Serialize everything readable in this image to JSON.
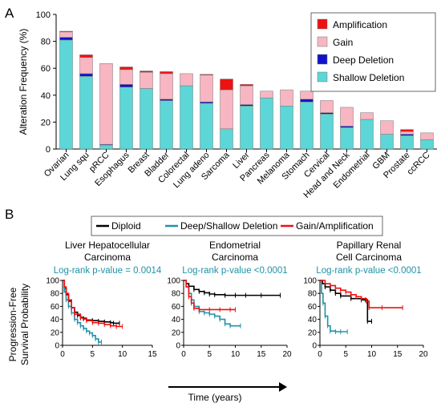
{
  "panel_a": {
    "label": "A",
    "chart_data": {
      "type": "bar",
      "stacked": true,
      "ylabel": "Alteration Frequency (%)",
      "ylim": [
        0,
        100
      ],
      "yticks": [
        "0",
        "20",
        "40",
        "60",
        "80",
        "100"
      ],
      "legend": {
        "placement": "top-right"
      },
      "categories": [
        "Ovarian",
        "Lung squ",
        "pRCC",
        "Esophagus",
        "Breast",
        "Bladder",
        "Colorectal",
        "Lung adeno",
        "Sarcoma",
        "Liver",
        "Pancreas",
        "Melanoma",
        "Stomach",
        "Cervical",
        "Head and Neck",
        "Endometrial",
        "GBM",
        "Prostate",
        "ccRCC"
      ],
      "series": [
        {
          "name": "Shallow Deletion",
          "color": "#5cd6d6",
          "values": [
            81,
            54,
            3,
            46,
            45,
            36,
            47,
            34,
            15,
            32,
            38,
            32,
            35,
            26,
            16,
            22,
            11,
            10,
            7
          ]
        },
        {
          "name": "Deep Deletion",
          "color": "#1111cc",
          "values": [
            2,
            2,
            0.5,
            2,
            0,
            1,
            0,
            1,
            0,
            1,
            0,
            0,
            2,
            1,
            1,
            0,
            0,
            1,
            0
          ]
        },
        {
          "name": "Gain",
          "color": "#f7b6c2",
          "values": [
            4,
            12,
            60,
            11,
            12,
            19,
            9,
            20,
            29,
            14,
            5,
            12,
            6,
            9,
            14,
            5,
            10,
            2,
            5
          ]
        },
        {
          "name": "Amplification",
          "color": "#ee1111",
          "values": [
            0.5,
            2,
            0,
            2,
            1,
            1.5,
            0,
            0.5,
            8,
            1,
            0,
            0,
            0,
            0,
            0,
            0,
            0,
            1.5,
            0
          ]
        }
      ]
    }
  },
  "panel_b": {
    "label": "B",
    "legend": [
      {
        "name": "Diploid",
        "color": "#000000"
      },
      {
        "name": "Deep/Shallow Deletion",
        "color": "#1e93a8"
      },
      {
        "name": "Gain/Amplification",
        "color": "#ee1111"
      }
    ],
    "ylabel_line1": "Progression-Free",
    "ylabel_line2": "Survival Probability",
    "xlabel": "Time (years)",
    "pvalue_color": "#1e93a8",
    "chart_data": [
      {
        "type": "line",
        "title_line1": "Liver Hepatocellular",
        "title_line2": "Carcinoma",
        "pvalue": "Log-rank p-value = 0.0014",
        "xlim": [
          0,
          15
        ],
        "ylim": [
          0,
          100
        ],
        "xticks": [
          "0",
          "5",
          "10",
          "15"
        ],
        "yticks": [
          "0",
          "20",
          "40",
          "60",
          "80",
          "100"
        ],
        "series": [
          {
            "name": "Diploid",
            "x": [
              0,
              0.3,
              0.6,
              1,
              1.5,
              2,
              2.5,
              3,
              3.5,
              4,
              5,
              6,
              7,
              8,
              8.5,
              9.5
            ],
            "y": [
              100,
              88,
              78,
              68,
              58,
              51,
              46,
              43,
              41,
              39,
              38,
              37,
              36,
              35,
              34,
              34
            ]
          },
          {
            "name": "Deep/Shallow Deletion",
            "x": [
              0,
              0.3,
              0.6,
              1,
              1.5,
              2,
              2.5,
              3,
              3.5,
              4,
              4.5,
              5,
              5.5,
              6,
              6.5
            ],
            "y": [
              100,
              82,
              70,
              60,
              50,
              40,
              35,
              30,
              26,
              22,
              19,
              15,
              10,
              5,
              5
            ]
          },
          {
            "name": "Gain/Amplification",
            "x": [
              0,
              0.3,
              0.6,
              1,
              1.5,
              2,
              3,
              4,
              5,
              6,
              7,
              8,
              9,
              10
            ],
            "y": [
              100,
              90,
              80,
              70,
              58,
              48,
              42,
              38,
              35,
              34,
              32,
              30,
              29,
              29
            ]
          }
        ]
      },
      {
        "type": "line",
        "title_line1": "Endometrial",
        "title_line2": "Carcinoma",
        "pvalue": "Log-rank p-value <0.0001",
        "xlim": [
          0,
          20
        ],
        "ylim": [
          0,
          100
        ],
        "xticks": [
          "0",
          "5",
          "10",
          "15",
          "20"
        ],
        "yticks": [
          "0",
          "20",
          "40",
          "60",
          "80",
          "100"
        ],
        "series": [
          {
            "name": "Diploid",
            "x": [
              0,
              0.5,
              1,
              2,
              3,
              4,
              5,
              6,
              8,
              10,
              12,
              15,
              18.7
            ],
            "y": [
              100,
              95,
              91,
              86,
              83,
              81,
              79,
              78,
              77,
              77,
              77,
              77,
              77
            ]
          },
          {
            "name": "Deep/Shallow Deletion",
            "x": [
              0,
              0.5,
              1,
              1.5,
              2,
              3,
              4,
              5,
              6,
              7,
              8,
              9,
              11
            ],
            "y": [
              100,
              90,
              80,
              70,
              60,
              52,
              50,
              48,
              45,
              40,
              33,
              30,
              30
            ]
          },
          {
            "name": "Gain/Amplification",
            "x": [
              0,
              0.5,
              1,
              1.5,
              2,
              3,
              5,
              7,
              9,
              10
            ],
            "y": [
              100,
              90,
              75,
              65,
              57,
              55,
              55,
              55,
              55,
              55
            ]
          }
        ]
      },
      {
        "type": "line",
        "title_line1": "Papillary Renal",
        "title_line2": "Cell Carcinoma",
        "pvalue": "Log-rank p-value <0.0001",
        "xlim": [
          0,
          20
        ],
        "ylim": [
          0,
          100
        ],
        "xticks": [
          "0",
          "5",
          "10",
          "15",
          "20"
        ],
        "yticks": [
          "0",
          "20",
          "40",
          "60",
          "80",
          "100"
        ],
        "series": [
          {
            "name": "Diploid",
            "x": [
              0,
              0.5,
              1,
              2,
              3,
              4,
              6,
              8,
              8.8,
              9.2,
              10
            ],
            "y": [
              100,
              95,
              90,
              85,
              80,
              76,
              72,
              70,
              70,
              37,
              37
            ]
          },
          {
            "name": "Deep/Shallow Deletion",
            "x": [
              0,
              0.3,
              0.6,
              1,
              1.5,
              2,
              3,
              4,
              5.3
            ],
            "y": [
              100,
              80,
              65,
              45,
              30,
              22,
              21,
              21,
              21
            ]
          },
          {
            "name": "Gain/Amplification",
            "x": [
              0,
              1,
              2,
              3,
              4,
              5,
              6,
              7,
              8,
              9,
              9.5,
              12,
              16
            ],
            "y": [
              100,
              95,
              92,
              88,
              85,
              82,
              78,
              75,
              72,
              68,
              58,
              58,
              58
            ]
          }
        ]
      }
    ]
  }
}
